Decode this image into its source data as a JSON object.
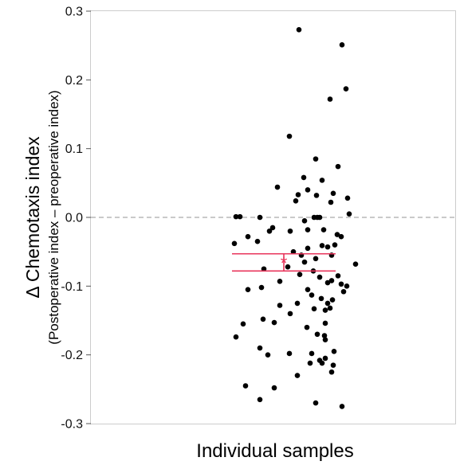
{
  "chart_data": {
    "type": "scatter",
    "title": "",
    "ylabel": "Δ Chemotaxis index",
    "ylabel_sub": "(Postoperative index – preoperative index)",
    "xlabel": "Individual samples",
    "ylim": [
      -0.3,
      0.3
    ],
    "yticks": [
      {
        "value": 0.3,
        "label": "0.3"
      },
      {
        "value": 0.2,
        "label": "0.2"
      },
      {
        "value": 0.1,
        "label": "0.1"
      },
      {
        "value": 0.0,
        "label": "0.0"
      },
      {
        "value": -0.1,
        "label": "-0.1"
      },
      {
        "value": -0.2,
        "label": "-0.2"
      },
      {
        "value": -0.3,
        "label": "-0.3"
      }
    ],
    "grid": false,
    "reference_line": {
      "y": 0.0,
      "style": "dashed",
      "color": "#aaaaaa"
    },
    "point_color": "#000000",
    "summary": {
      "mean": -0.065,
      "ci_low": -0.078,
      "ci_high": -0.053,
      "marker": "*",
      "color": "#e8365c"
    },
    "points": [
      [
        0.19,
        0.273
      ],
      [
        0.73,
        0.251
      ],
      [
        0.78,
        0.187
      ],
      [
        0.58,
        0.172
      ],
      [
        0.07,
        0.118
      ],
      [
        0.4,
        0.085
      ],
      [
        0.68,
        0.074
      ],
      [
        0.25,
        0.058
      ],
      [
        0.48,
        0.054
      ],
      [
        -0.08,
        0.044
      ],
      [
        0.3,
        0.04
      ],
      [
        0.62,
        0.035
      ],
      [
        0.18,
        0.033
      ],
      [
        0.41,
        0.032
      ],
      [
        0.8,
        0.028
      ],
      [
        0.59,
        0.022
      ],
      [
        0.15,
        0.024
      ],
      [
        -0.6,
        0.001
      ],
      [
        -0.55,
        0.001
      ],
      [
        -0.3,
        0.0
      ],
      [
        0.42,
        0.0
      ],
      [
        0.45,
        0.0
      ],
      [
        0.82,
        0.005
      ],
      [
        0.38,
        0.0
      ],
      [
        0.26,
        -0.005
      ],
      [
        -0.14,
        -0.015
      ],
      [
        0.3,
        -0.018
      ],
      [
        0.5,
        -0.018
      ],
      [
        -0.18,
        -0.02
      ],
      [
        0.08,
        -0.02
      ],
      [
        0.67,
        -0.025
      ],
      [
        0.72,
        -0.028
      ],
      [
        -0.45,
        -0.028
      ],
      [
        -0.33,
        -0.035
      ],
      [
        -0.62,
        -0.038
      ],
      [
        0.64,
        -0.04
      ],
      [
        0.48,
        -0.041
      ],
      [
        0.55,
        -0.043
      ],
      [
        0.3,
        -0.045
      ],
      [
        0.12,
        -0.05
      ],
      [
        0.6,
        -0.055
      ],
      [
        0.22,
        -0.055
      ],
      [
        0.4,
        -0.06
      ],
      [
        0.26,
        -0.065
      ],
      [
        0.05,
        -0.072
      ],
      [
        -0.25,
        -0.075
      ],
      [
        0.37,
        -0.078
      ],
      [
        0.9,
        -0.068
      ],
      [
        0.2,
        -0.083
      ],
      [
        0.68,
        -0.085
      ],
      [
        0.45,
        -0.087
      ],
      [
        0.6,
        -0.092
      ],
      [
        -0.05,
        -0.093
      ],
      [
        0.55,
        -0.095
      ],
      [
        0.72,
        -0.097
      ],
      [
        0.79,
        -0.1
      ],
      [
        -0.28,
        -0.102
      ],
      [
        -0.45,
        -0.105
      ],
      [
        0.3,
        -0.105
      ],
      [
        0.75,
        -0.108
      ],
      [
        0.35,
        -0.113
      ],
      [
        0.47,
        -0.118
      ],
      [
        0.61,
        -0.12
      ],
      [
        0.55,
        -0.125
      ],
      [
        0.17,
        -0.125
      ],
      [
        -0.05,
        -0.128
      ],
      [
        0.58,
        -0.132
      ],
      [
        0.38,
        -0.133
      ],
      [
        0.52,
        -0.135
      ],
      [
        0.08,
        -0.14
      ],
      [
        -0.26,
        -0.148
      ],
      [
        -0.12,
        -0.153
      ],
      [
        0.52,
        -0.154
      ],
      [
        -0.51,
        -0.155
      ],
      [
        0.29,
        -0.16
      ],
      [
        -0.6,
        -0.174
      ],
      [
        0.51,
        -0.172
      ],
      [
        0.42,
        -0.17
      ],
      [
        0.52,
        -0.178
      ],
      [
        -0.3,
        -0.19
      ],
      [
        0.63,
        -0.195
      ],
      [
        0.35,
        -0.198
      ],
      [
        0.07,
        -0.198
      ],
      [
        -0.2,
        -0.2
      ],
      [
        0.52,
        -0.205
      ],
      [
        0.45,
        -0.208
      ],
      [
        0.48,
        -0.212
      ],
      [
        0.33,
        -0.212
      ],
      [
        0.62,
        -0.215
      ],
      [
        0.6,
        -0.225
      ],
      [
        0.17,
        -0.23
      ],
      [
        -0.48,
        -0.245
      ],
      [
        -0.12,
        -0.248
      ],
      [
        -0.3,
        -0.265
      ],
      [
        0.4,
        -0.27
      ],
      [
        0.73,
        -0.275
      ]
    ]
  }
}
